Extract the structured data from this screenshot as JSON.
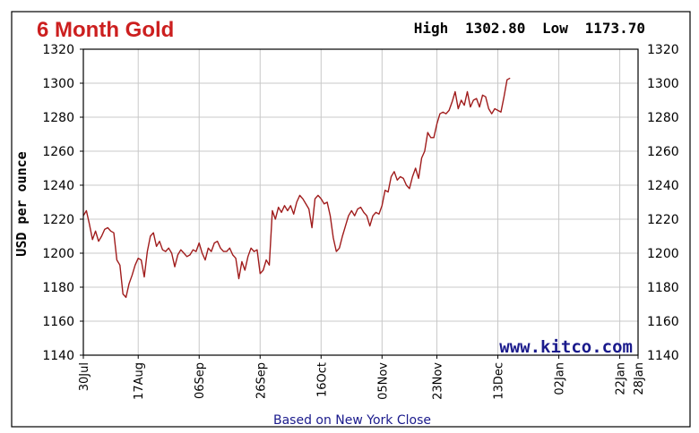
{
  "chart_data": {
    "type": "line",
    "title": "6 Month Gold",
    "high_label": "High",
    "high_value": "1302.80",
    "low_label": "Low",
    "low_value": "1173.70",
    "ylabel": "USD per ounce",
    "footer": "Based on New York Close",
    "source": "www.kitco.com",
    "ylim": [
      1140,
      1320
    ],
    "yticks": [
      "1140",
      "1160",
      "1180",
      "1200",
      "1220",
      "1240",
      "1260",
      "1280",
      "1300",
      "1320"
    ],
    "xlim": [
      0,
      182
    ],
    "xticks": [
      {
        "label": "30Jul",
        "x": 0
      },
      {
        "label": "17Aug",
        "x": 18
      },
      {
        "label": "06Sep",
        "x": 38
      },
      {
        "label": "26Sep",
        "x": 58
      },
      {
        "label": "16Oct",
        "x": 78
      },
      {
        "label": "05Nov",
        "x": 98
      },
      {
        "label": "23Nov",
        "x": 116
      },
      {
        "label": "13Dec",
        "x": 136
      },
      {
        "label": "02Jan",
        "x": 156
      },
      {
        "label": "22Jan",
        "x": 176
      },
      {
        "label": "28Jan",
        "x": 182
      }
    ],
    "grid": true,
    "colors": {
      "line": "#a01c1c",
      "title": "#cc1f1f",
      "grid": "#c8c8c8",
      "source": "#1a1a8c"
    },
    "series": [
      {
        "values": [
          [
            0,
            1222
          ],
          [
            1,
            1225
          ],
          [
            2,
            1217
          ],
          [
            3,
            1208
          ],
          [
            4,
            1213
          ],
          [
            5,
            1207
          ],
          [
            6,
            1210
          ],
          [
            7,
            1214
          ],
          [
            8,
            1215
          ],
          [
            9,
            1213
          ],
          [
            10,
            1212
          ],
          [
            11,
            1196
          ],
          [
            12,
            1193
          ],
          [
            13,
            1176
          ],
          [
            14,
            1174
          ],
          [
            15,
            1182
          ],
          [
            16,
            1187
          ],
          [
            17,
            1193
          ],
          [
            18,
            1197
          ],
          [
            19,
            1196
          ],
          [
            20,
            1186
          ],
          [
            21,
            1201
          ],
          [
            22,
            1210
          ],
          [
            23,
            1212
          ],
          [
            24,
            1204
          ],
          [
            25,
            1207
          ],
          [
            26,
            1202
          ],
          [
            27,
            1201
          ],
          [
            28,
            1203
          ],
          [
            29,
            1200
          ],
          [
            30,
            1192
          ],
          [
            31,
            1199
          ],
          [
            32,
            1202
          ],
          [
            33,
            1200
          ],
          [
            34,
            1198
          ],
          [
            35,
            1199
          ],
          [
            36,
            1202
          ],
          [
            37,
            1201
          ],
          [
            38,
            1206
          ],
          [
            39,
            1200
          ],
          [
            40,
            1196
          ],
          [
            41,
            1203
          ],
          [
            42,
            1201
          ],
          [
            43,
            1206
          ],
          [
            44,
            1207
          ],
          [
            45,
            1203
          ],
          [
            46,
            1201
          ],
          [
            47,
            1201
          ],
          [
            48,
            1203
          ],
          [
            49,
            1199
          ],
          [
            50,
            1197
          ],
          [
            51,
            1185
          ],
          [
            52,
            1195
          ],
          [
            53,
            1190
          ],
          [
            54,
            1198
          ],
          [
            55,
            1203
          ],
          [
            56,
            1201
          ],
          [
            57,
            1202
          ],
          [
            58,
            1188
          ],
          [
            59,
            1190
          ],
          [
            60,
            1196
          ],
          [
            61,
            1193
          ],
          [
            62,
            1225
          ],
          [
            63,
            1220
          ],
          [
            64,
            1227
          ],
          [
            65,
            1224
          ],
          [
            66,
            1228
          ],
          [
            67,
            1225
          ],
          [
            68,
            1228
          ],
          [
            69,
            1223
          ],
          [
            70,
            1230
          ],
          [
            71,
            1234
          ],
          [
            72,
            1232
          ],
          [
            73,
            1229
          ],
          [
            74,
            1226
          ],
          [
            75,
            1215
          ],
          [
            76,
            1232
          ],
          [
            77,
            1234
          ],
          [
            78,
            1232
          ],
          [
            79,
            1229
          ],
          [
            80,
            1230
          ],
          [
            81,
            1222
          ],
          [
            82,
            1209
          ],
          [
            83,
            1201
          ],
          [
            84,
            1203
          ],
          [
            85,
            1210
          ],
          [
            86,
            1216
          ],
          [
            87,
            1222
          ],
          [
            88,
            1225
          ],
          [
            89,
            1222
          ],
          [
            90,
            1226
          ],
          [
            91,
            1227
          ],
          [
            92,
            1224
          ],
          [
            93,
            1222
          ],
          [
            94,
            1216
          ],
          [
            95,
            1222
          ],
          [
            96,
            1224
          ],
          [
            97,
            1223
          ],
          [
            98,
            1228
          ],
          [
            99,
            1237
          ],
          [
            100,
            1236
          ],
          [
            101,
            1245
          ],
          [
            102,
            1248
          ],
          [
            103,
            1243
          ],
          [
            104,
            1245
          ],
          [
            105,
            1244
          ],
          [
            106,
            1240
          ],
          [
            107,
            1238
          ],
          [
            108,
            1245
          ],
          [
            109,
            1250
          ],
          [
            110,
            1244
          ],
          [
            111,
            1256
          ],
          [
            112,
            1260
          ],
          [
            113,
            1271
          ],
          [
            114,
            1268
          ],
          [
            115,
            1268
          ],
          [
            116,
            1276
          ],
          [
            117,
            1282
          ],
          [
            118,
            1283
          ],
          [
            119,
            1282
          ],
          [
            120,
            1284
          ],
          [
            121,
            1289
          ],
          [
            122,
            1295
          ],
          [
            123,
            1285
          ],
          [
            124,
            1290
          ],
          [
            125,
            1287
          ],
          [
            126,
            1295
          ],
          [
            127,
            1286
          ],
          [
            128,
            1290
          ],
          [
            129,
            1291
          ],
          [
            130,
            1286
          ],
          [
            131,
            1293
          ],
          [
            132,
            1292
          ],
          [
            133,
            1285
          ],
          [
            134,
            1282
          ],
          [
            135,
            1285
          ],
          [
            136,
            1284
          ],
          [
            137,
            1283
          ],
          [
            138,
            1292
          ],
          [
            139,
            1302
          ],
          [
            140,
            1303
          ]
        ]
      }
    ]
  }
}
